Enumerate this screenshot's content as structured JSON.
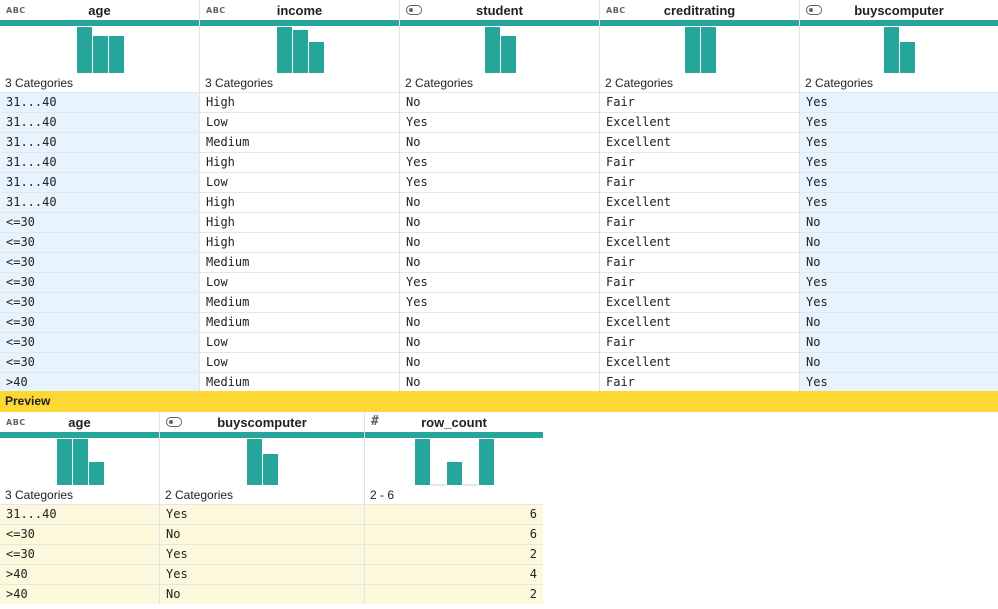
{
  "main_table": {
    "columns": [
      {
        "name": "age",
        "type_icon": "abc-type-icon",
        "type_label": "ABC",
        "summary": "3 Categories",
        "highlight": true,
        "histogram": [
          1.0,
          0.8,
          0.8
        ]
      },
      {
        "name": "income",
        "type_icon": "abc-type-icon",
        "type_label": "ABC",
        "summary": "3 Categories",
        "highlight": false,
        "histogram": [
          1.0,
          0.93,
          0.67
        ]
      },
      {
        "name": "student",
        "type_icon": "toggle-type-icon",
        "type_label": "",
        "summary": "2 Categories",
        "highlight": false,
        "histogram": [
          1.0,
          0.8
        ]
      },
      {
        "name": "creditrating",
        "type_icon": "abc-type-icon",
        "type_label": "ABC",
        "summary": "2 Categories",
        "highlight": false,
        "histogram": [
          1.0,
          1.0
        ]
      },
      {
        "name": "buyscomputer",
        "type_icon": "toggle-type-icon",
        "type_label": "",
        "summary": "2 Categories",
        "highlight": true,
        "histogram": [
          1.0,
          0.67
        ]
      }
    ],
    "rows": [
      [
        "31...40",
        "High",
        "No",
        "Fair",
        "Yes"
      ],
      [
        "31...40",
        "Low",
        "Yes",
        "Excellent",
        "Yes"
      ],
      [
        "31...40",
        "Medium",
        "No",
        "Excellent",
        "Yes"
      ],
      [
        "31...40",
        "High",
        "Yes",
        "Fair",
        "Yes"
      ],
      [
        "31...40",
        "Low",
        "Yes",
        "Fair",
        "Yes"
      ],
      [
        "31...40",
        "High",
        "No",
        "Excellent",
        "Yes"
      ],
      [
        "<=30",
        "High",
        "No",
        "Fair",
        "No"
      ],
      [
        "<=30",
        "High",
        "No",
        "Excellent",
        "No"
      ],
      [
        "<=30",
        "Medium",
        "No",
        "Fair",
        "No"
      ],
      [
        "<=30",
        "Low",
        "Yes",
        "Fair",
        "Yes"
      ],
      [
        "<=30",
        "Medium",
        "Yes",
        "Excellent",
        "Yes"
      ],
      [
        "<=30",
        "Medium",
        "No",
        "Excellent",
        "No"
      ],
      [
        "<=30",
        "Low",
        "No",
        "Fair",
        "No"
      ],
      [
        "<=30",
        "Low",
        "No",
        "Excellent",
        "No"
      ],
      [
        ">40",
        "Medium",
        "No",
        "Fair",
        "Yes"
      ]
    ]
  },
  "preview_label": "Preview",
  "preview_table": {
    "columns": [
      {
        "name": "age",
        "type_icon": "abc-type-icon",
        "type_label": "ABC",
        "summary": "3 Categories",
        "histogram": [
          1.0,
          1.0,
          0.5
        ],
        "numeric": false
      },
      {
        "name": "buyscomputer",
        "type_icon": "toggle-type-icon",
        "type_label": "",
        "summary": "2 Categories",
        "histogram": [
          1.0,
          0.67
        ],
        "numeric": false
      },
      {
        "name": "row_count",
        "type_icon": "hash-type-icon",
        "type_label": "#",
        "summary": "2 - 6",
        "histogram": [
          1.0,
          0.0,
          0.5,
          0.0,
          1.0
        ],
        "numeric": true
      }
    ],
    "rows": [
      [
        "31...40",
        "Yes",
        "6"
      ],
      [
        "<=30",
        "No",
        "6"
      ],
      [
        "<=30",
        "Yes",
        "2"
      ],
      [
        ">40",
        "Yes",
        "4"
      ],
      [
        ">40",
        "No",
        "2"
      ]
    ]
  },
  "colors": {
    "accent": "#26a69a",
    "highlight_blue": "#e8f4fd",
    "highlight_yellow": "#fdf9dc",
    "preview_bar": "#fdd835"
  }
}
